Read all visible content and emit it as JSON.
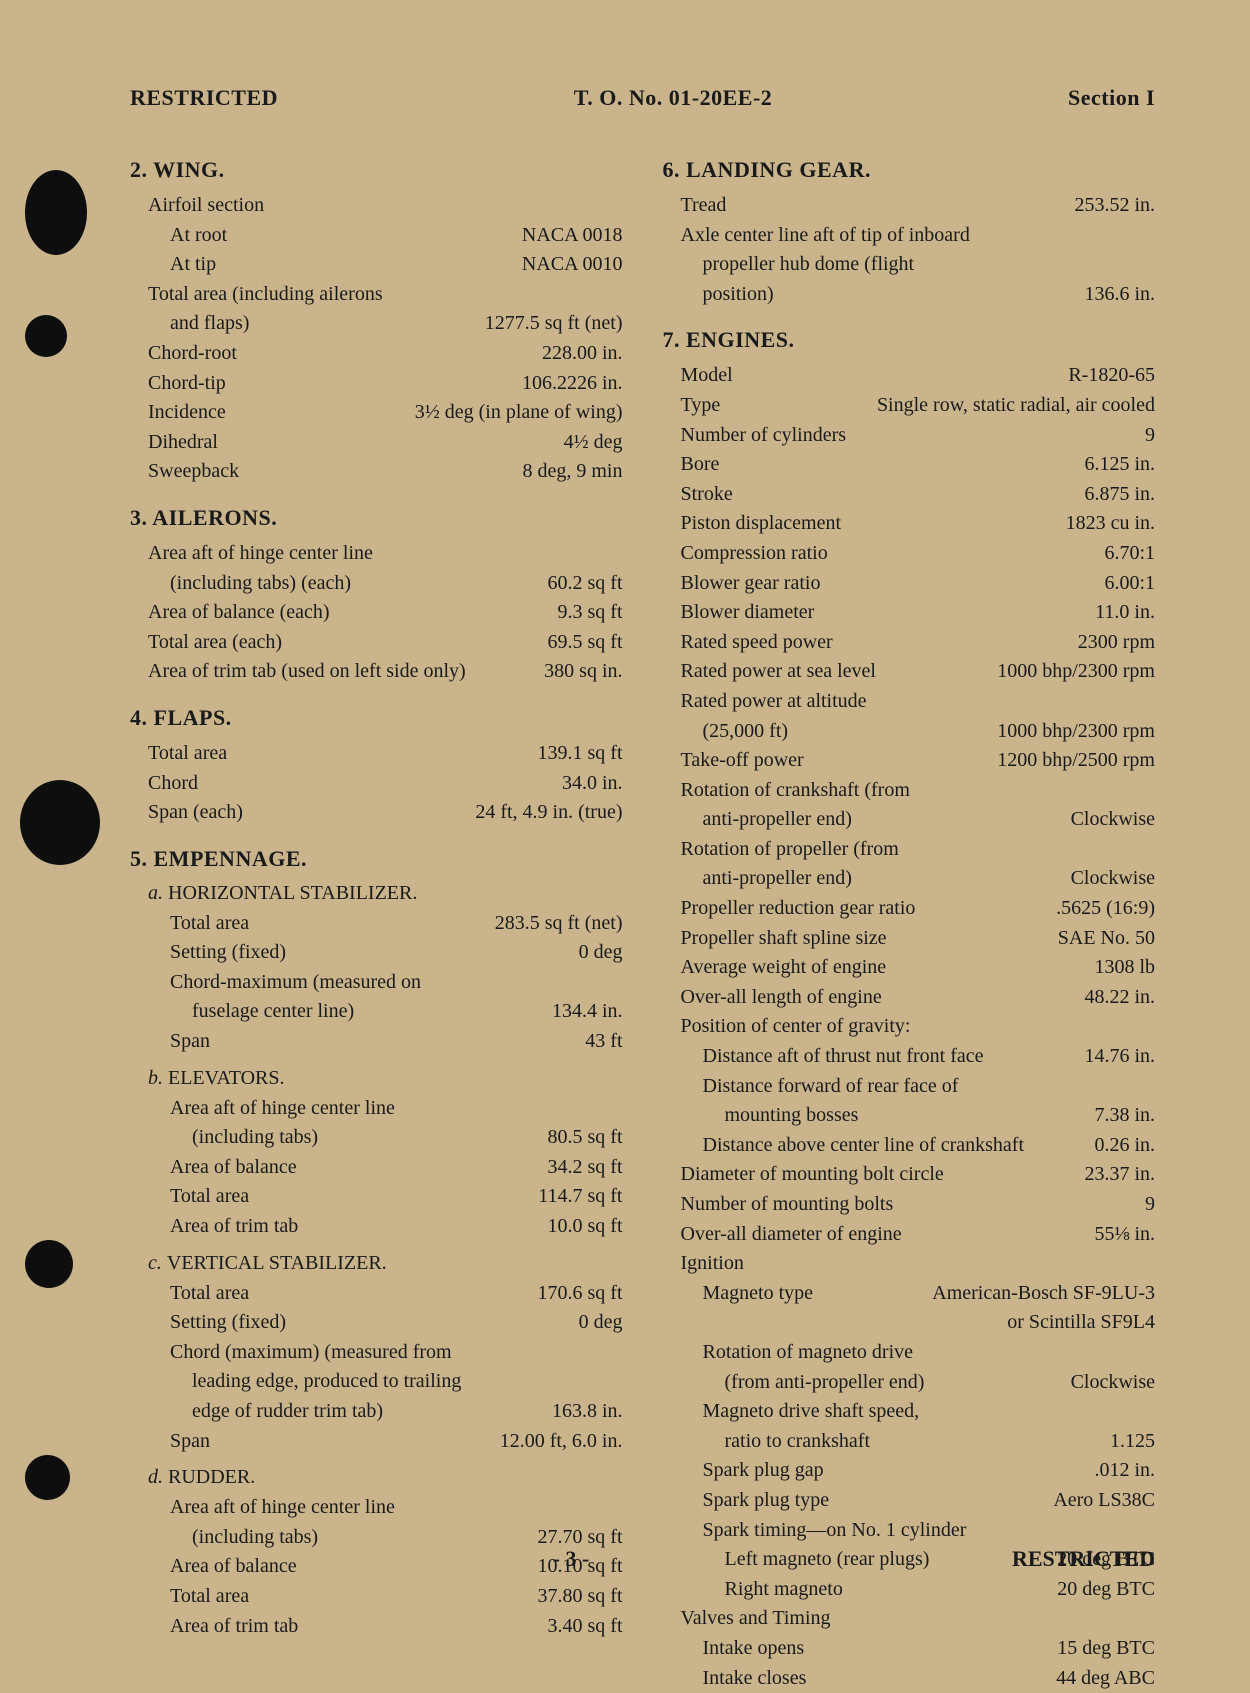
{
  "header": {
    "left": "RESTRICTED",
    "center": "T. O. No. 01-20EE-2",
    "right": "Section I"
  },
  "footer": {
    "page": "- 3 -",
    "right": "RESTRICTED"
  },
  "left": {
    "sec2": {
      "title": "2. WING.",
      "rows": [
        {
          "l": "Airfoil section",
          "v": "",
          "i": 0
        },
        {
          "l": "At root",
          "v": "NACA 0018",
          "i": 1
        },
        {
          "l": "At tip",
          "v": "NACA 0010",
          "i": 1
        },
        {
          "l": "Total area (including ailerons",
          "v": "",
          "i": 0
        },
        {
          "l": "and flaps)",
          "v": "1277.5 sq ft (net)",
          "i": 1
        },
        {
          "l": "Chord-root",
          "v": "228.00 in.",
          "i": 0
        },
        {
          "l": "Chord-tip",
          "v": "106.2226 in.",
          "i": 0
        },
        {
          "l": "Incidence",
          "v": "3½ deg (in plane of wing)",
          "i": 0
        },
        {
          "l": "Dihedral",
          "v": "4½ deg",
          "i": 0
        },
        {
          "l": "Sweepback",
          "v": "8 deg, 9 min",
          "i": 0
        }
      ]
    },
    "sec3": {
      "title": "3. AILERONS.",
      "rows": [
        {
          "l": "Area aft of hinge center line",
          "v": "",
          "i": 0
        },
        {
          "l": "(including tabs) (each)",
          "v": "60.2 sq ft",
          "i": 1
        },
        {
          "l": "Area of balance (each)",
          "v": "9.3 sq ft",
          "i": 0
        },
        {
          "l": "Total area (each)",
          "v": "69.5 sq ft",
          "i": 0
        },
        {
          "l": "Area of trim tab (used on left side only)",
          "v": "380 sq in.",
          "i": 0
        }
      ]
    },
    "sec4": {
      "title": "4. FLAPS.",
      "rows": [
        {
          "l": "Total area",
          "v": "139.1 sq ft",
          "i": 0
        },
        {
          "l": "Chord",
          "v": "34.0 in.",
          "i": 0
        },
        {
          "l": "Span (each)",
          "v": "24 ft, 4.9 in. (true)",
          "i": 0
        }
      ]
    },
    "sec5": {
      "title": "5. EMPENNAGE.",
      "subs": [
        {
          "title_it": "a.",
          "title": "HORIZONTAL STABILIZER.",
          "rows": [
            {
              "l": "Total area",
              "v": "283.5 sq ft (net)",
              "i": 1
            },
            {
              "l": "Setting (fixed)",
              "v": "0 deg",
              "i": 1
            },
            {
              "l": "Chord-maximum (measured on",
              "v": "",
              "i": 1
            },
            {
              "l": "fuselage center line)",
              "v": "134.4 in.",
              "i": 2
            },
            {
              "l": "Span",
              "v": "43 ft",
              "i": 1
            }
          ]
        },
        {
          "title_it": "b.",
          "title": "ELEVATORS.",
          "rows": [
            {
              "l": "Area aft of hinge center line",
              "v": "",
              "i": 1
            },
            {
              "l": "(including tabs)",
              "v": "80.5 sq ft",
              "i": 2
            },
            {
              "l": "Area of balance",
              "v": "34.2 sq ft",
              "i": 1
            },
            {
              "l": "Total area",
              "v": "114.7 sq ft",
              "i": 1
            },
            {
              "l": "Area of trim tab",
              "v": "10.0 sq ft",
              "i": 1
            }
          ]
        },
        {
          "title_it": "c.",
          "title": "VERTICAL STABILIZER.",
          "rows": [
            {
              "l": "Total area",
              "v": "170.6 sq ft",
              "i": 1
            },
            {
              "l": "Setting (fixed)",
              "v": "0 deg",
              "i": 1
            },
            {
              "l": "Chord (maximum) (measured from",
              "v": "",
              "i": 1
            },
            {
              "l": "leading edge, produced to trailing",
              "v": "",
              "i": 2
            },
            {
              "l": "edge of rudder trim tab)",
              "v": "163.8 in.",
              "i": 2
            },
            {
              "l": "Span",
              "v": "12.00 ft, 6.0 in.",
              "i": 1
            }
          ]
        },
        {
          "title_it": "d.",
          "title": "RUDDER.",
          "rows": [
            {
              "l": "Area aft of hinge center line",
              "v": "",
              "i": 1
            },
            {
              "l": "(including tabs)",
              "v": "27.70 sq ft",
              "i": 2
            },
            {
              "l": "Area of balance",
              "v": "10.10 sq ft",
              "i": 1
            },
            {
              "l": "Total area",
              "v": "37.80 sq ft",
              "i": 1
            },
            {
              "l": "Area of trim tab",
              "v": "3.40 sq ft",
              "i": 1
            }
          ]
        }
      ]
    }
  },
  "right": {
    "sec6": {
      "title": "6. LANDING GEAR.",
      "rows": [
        {
          "l": "Tread",
          "v": "253.52 in.",
          "i": 0
        },
        {
          "l": "Axle center line aft of tip of inboard",
          "v": "",
          "i": 0
        },
        {
          "l": "propeller hub dome (flight",
          "v": "",
          "i": 1
        },
        {
          "l": "position)",
          "v": "136.6 in.",
          "i": 1
        }
      ]
    },
    "sec7": {
      "title": "7. ENGINES.",
      "rows": [
        {
          "l": "Model",
          "v": "R-1820-65",
          "i": 0
        },
        {
          "l": "Type",
          "v": "Single row, static radial, air cooled",
          "i": 0
        },
        {
          "l": "Number of cylinders",
          "v": "9",
          "i": 0
        },
        {
          "l": "Bore",
          "v": "6.125 in.",
          "i": 0
        },
        {
          "l": "Stroke",
          "v": "6.875 in.",
          "i": 0
        },
        {
          "l": "Piston displacement",
          "v": "1823 cu in.",
          "i": 0
        },
        {
          "l": "Compression ratio",
          "v": "6.70:1",
          "i": 0
        },
        {
          "l": "Blower gear ratio",
          "v": "6.00:1",
          "i": 0
        },
        {
          "l": "Blower diameter",
          "v": "11.0 in.",
          "i": 0
        },
        {
          "l": "Rated speed power",
          "v": "2300 rpm",
          "i": 0
        },
        {
          "l": "Rated power at sea level",
          "v": "1000 bhp/2300 rpm",
          "i": 0
        },
        {
          "l": "Rated power at altitude",
          "v": "",
          "i": 0
        },
        {
          "l": "(25,000 ft)",
          "v": "1000 bhp/2300 rpm",
          "i": 1
        },
        {
          "l": "Take-off power",
          "v": "1200 bhp/2500 rpm",
          "i": 0
        },
        {
          "l": "Rotation of crankshaft (from",
          "v": "",
          "i": 0
        },
        {
          "l": "anti-propeller end)",
          "v": "Clockwise",
          "i": 1
        },
        {
          "l": "Rotation of propeller (from",
          "v": "",
          "i": 0
        },
        {
          "l": "anti-propeller end)",
          "v": "Clockwise",
          "i": 1
        },
        {
          "l": "Propeller reduction gear ratio",
          "v": ".5625 (16:9)",
          "i": 0
        },
        {
          "l": "Propeller shaft spline size",
          "v": "SAE No. 50",
          "i": 0
        },
        {
          "l": "Average weight of engine",
          "v": "1308 lb",
          "i": 0
        },
        {
          "l": "Over-all length of engine",
          "v": "48.22 in.",
          "i": 0
        },
        {
          "l": "Position of center of gravity:",
          "v": "",
          "i": 0
        },
        {
          "l": "Distance aft of thrust nut front face",
          "v": "14.76 in.",
          "i": 1
        },
        {
          "l": "Distance forward of rear face of",
          "v": "",
          "i": 1
        },
        {
          "l": "mounting bosses",
          "v": "7.38 in.",
          "i": 2
        },
        {
          "l": "Distance above center line of crankshaft",
          "v": "0.26 in.",
          "i": 1
        },
        {
          "l": "Diameter of mounting bolt circle",
          "v": "23.37 in.",
          "i": 0
        },
        {
          "l": "Number of mounting bolts",
          "v": "9",
          "i": 0
        },
        {
          "l": "Over-all diameter of engine",
          "v": "55⅛ in.",
          "i": 0
        },
        {
          "l": "Ignition",
          "v": "",
          "i": 0
        },
        {
          "l": "Magneto type",
          "v": "American-Bosch SF-9LU-3",
          "i": 1
        },
        {
          "l": "",
          "v": "or Scintilla SF9L4",
          "i": 2
        },
        {
          "l": "Rotation of magneto drive",
          "v": "",
          "i": 1
        },
        {
          "l": "(from anti-propeller end)",
          "v": "Clockwise",
          "i": 2
        },
        {
          "l": "Magneto drive shaft speed,",
          "v": "",
          "i": 1
        },
        {
          "l": "ratio to crankshaft",
          "v": "1.125",
          "i": 2
        },
        {
          "l": "Spark plug gap",
          "v": ".012 in.",
          "i": 1
        },
        {
          "l": "Spark plug type",
          "v": "Aero LS38C",
          "i": 1
        },
        {
          "l": "Spark timing—on No. 1 cylinder",
          "v": "",
          "i": 1
        },
        {
          "l": "Left magneto (rear plugs)",
          "v": "20 deg BTC",
          "i": 2
        },
        {
          "l": "Right magneto",
          "v": "20 deg BTC",
          "i": 2
        },
        {
          "l": "Valves and Timing",
          "v": "",
          "i": 0
        },
        {
          "l": "Intake opens",
          "v": "15 deg BTC",
          "i": 1
        },
        {
          "l": "Intake closes",
          "v": "44 deg ABC",
          "i": 1
        }
      ]
    }
  }
}
